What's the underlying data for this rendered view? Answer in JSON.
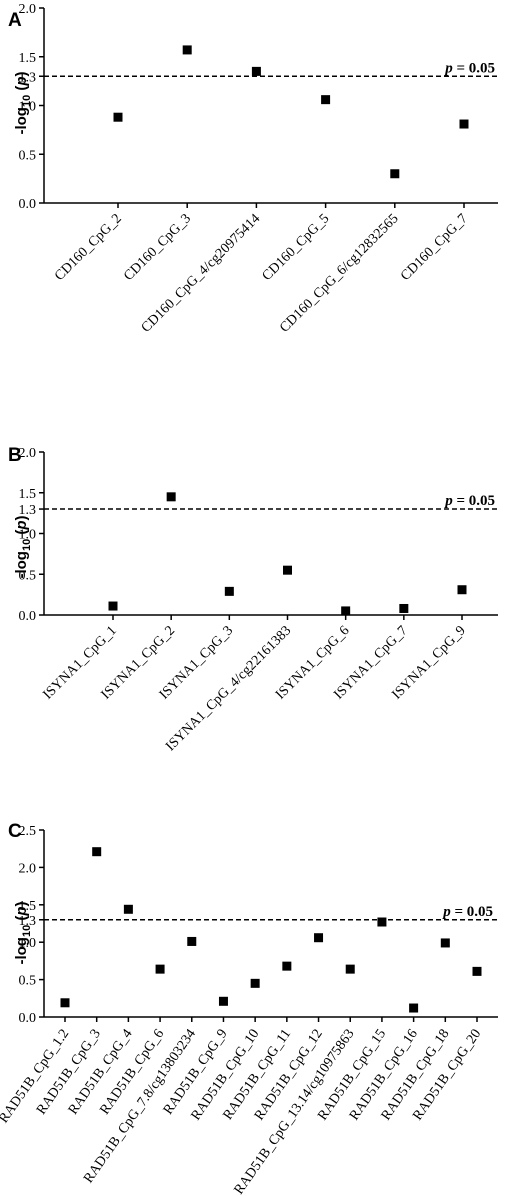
{
  "chart_data": [
    {
      "type": "scatter",
      "panel": "A",
      "ylabel": "-log10(p)",
      "ylabel_parts": {
        "pre": "-log",
        "sub": "10",
        "open": " (",
        "var": "p",
        "close": ")"
      },
      "yticks": [
        0.0,
        0.5,
        1.0,
        1.3,
        1.5,
        2.0
      ],
      "ytick_labels": [
        "0.0",
        "0.5",
        "1.0",
        "1.3",
        "1.5",
        "2.0"
      ],
      "ylim": [
        0,
        2.0
      ],
      "threshold": {
        "value": 1.3,
        "label_var": "p",
        "label_rest": " = 0.05"
      },
      "categories": [
        "CD160_CpG_2",
        "CD160_CpG_3",
        "CD160_CpG_4/cg20975414",
        "CD160_CpG_5",
        "CD160_CpG_6/cg12832565",
        "CD160_CpG_7"
      ],
      "values": [
        0.88,
        1.57,
        1.35,
        1.06,
        0.3,
        0.81
      ]
    },
    {
      "type": "scatter",
      "panel": "B",
      "ylabel": "-log10(p)",
      "ylabel_parts": {
        "pre": "-log",
        "sub": "10",
        "open": " (",
        "var": "p",
        "close": ")"
      },
      "yticks": [
        0.0,
        0.5,
        1.0,
        1.3,
        1.5,
        2.0
      ],
      "ytick_labels": [
        "0.0",
        "0.5",
        "1.0",
        "1.3",
        "1.5",
        "2.0"
      ],
      "ylim": [
        0,
        2.0
      ],
      "threshold": {
        "value": 1.3,
        "label_var": "p",
        "label_rest": " = 0.05"
      },
      "categories": [
        "ISYNA1_CpG_1",
        "ISYNA1_CpG_2",
        "ISYNA1_CpG_3",
        "ISYNA1_CpG_4/cg22161383",
        "ISYNA1_CpG_6",
        "ISYNA1_CpG_7",
        "ISYNA1_CpG_9"
      ],
      "values": [
        0.11,
        1.45,
        0.29,
        0.55,
        0.05,
        0.08,
        0.31
      ]
    },
    {
      "type": "scatter",
      "panel": "C",
      "ylabel": "-log10(p)",
      "ylabel_parts": {
        "pre": "-log",
        "sub": "10",
        "open": " (",
        "var": "p",
        "close": ")"
      },
      "yticks": [
        0.0,
        0.5,
        1.0,
        1.3,
        1.5,
        2.0,
        2.5
      ],
      "ytick_labels": [
        "0.0",
        "0.5",
        "1.0",
        "1.3",
        "1.5",
        "2.0",
        "2.5"
      ],
      "ylim": [
        0,
        2.5
      ],
      "threshold": {
        "value": 1.3,
        "label_var": "p",
        "label_rest": " = 0.05"
      },
      "categories": [
        "RAD51B_CpG_1.2",
        "RAD51B_CpG_3",
        "RAD51B_CpG_4",
        "RAD51B_CpG_6",
        "RAD51B_CpG_7.8/cg13803234",
        "RAD51B_CpG_9",
        "RAD51B_CpG_10",
        "RAD51B_CpG_11",
        "RAD51B_CpG_12",
        "RAD51B_CpG_13.14/cg10975863",
        "RAD51B_CpG_15",
        "RAD51B_CpG_16",
        "RAD51B_CpG_18",
        "RAD51B_CpG_20"
      ],
      "values": [
        0.19,
        2.21,
        1.44,
        0.64,
        1.01,
        0.21,
        0.45,
        0.68,
        1.06,
        0.64,
        1.27,
        0.12,
        0.99,
        0.61
      ]
    }
  ]
}
